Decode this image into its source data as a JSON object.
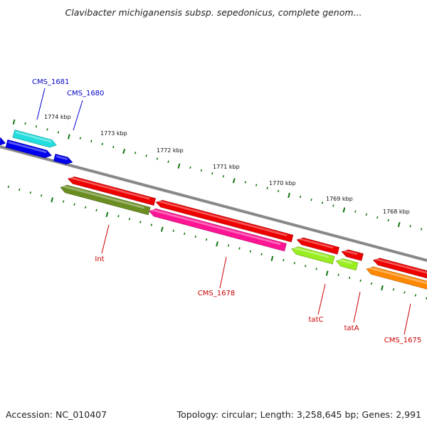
{
  "title": "Clavibacter michiganensis subsp. sepedonicus, complete genom...",
  "footer": {
    "accession": "Accession: NC_010407",
    "topology": "Topology: circular; Length: 3,258,645 bp; Genes: 2,991"
  },
  "colors": {
    "backbone": "#888888",
    "tick": "#117711",
    "label_blue": "#0000cc",
    "label_red": "#cc0000"
  },
  "position_labels": [
    "1774 kbp",
    "1773 kbp",
    "1772 kbp",
    "1771 kbp",
    "1770 kbp",
    "1769 kbp",
    "1768 kbp"
  ],
  "genes": [
    {
      "name": "",
      "color": "#0000ee",
      "strand": "forward"
    },
    {
      "name": "CMS_1681",
      "color": "#22dddd",
      "strand": "forward"
    },
    {
      "name": "",
      "color": "#0000ee",
      "strand": "forward"
    },
    {
      "name": "CMS_1680",
      "color": "#0000ee",
      "strand": "forward"
    },
    {
      "name": "",
      "color": "#ee0000",
      "strand": "reverse"
    },
    {
      "name": "",
      "color": "#ee0000",
      "strand": "reverse"
    },
    {
      "name": "",
      "color": "#ee0000",
      "strand": "reverse"
    },
    {
      "name": "",
      "color": "#ee0000",
      "strand": "reverse"
    },
    {
      "name": "",
      "color": "#ee0000",
      "strand": "reverse"
    },
    {
      "name": "Int",
      "color": "#6b8e23",
      "strand": "reverse"
    },
    {
      "name": "CMS_1678",
      "color": "#ff1493",
      "strand": "reverse"
    },
    {
      "name": "tatC",
      "color": "#99ee22",
      "strand": "reverse"
    },
    {
      "name": "tatA",
      "color": "#99ee22",
      "strand": "reverse"
    },
    {
      "name": "CMS_1675",
      "color": "#ff8800",
      "strand": "reverse"
    }
  ]
}
